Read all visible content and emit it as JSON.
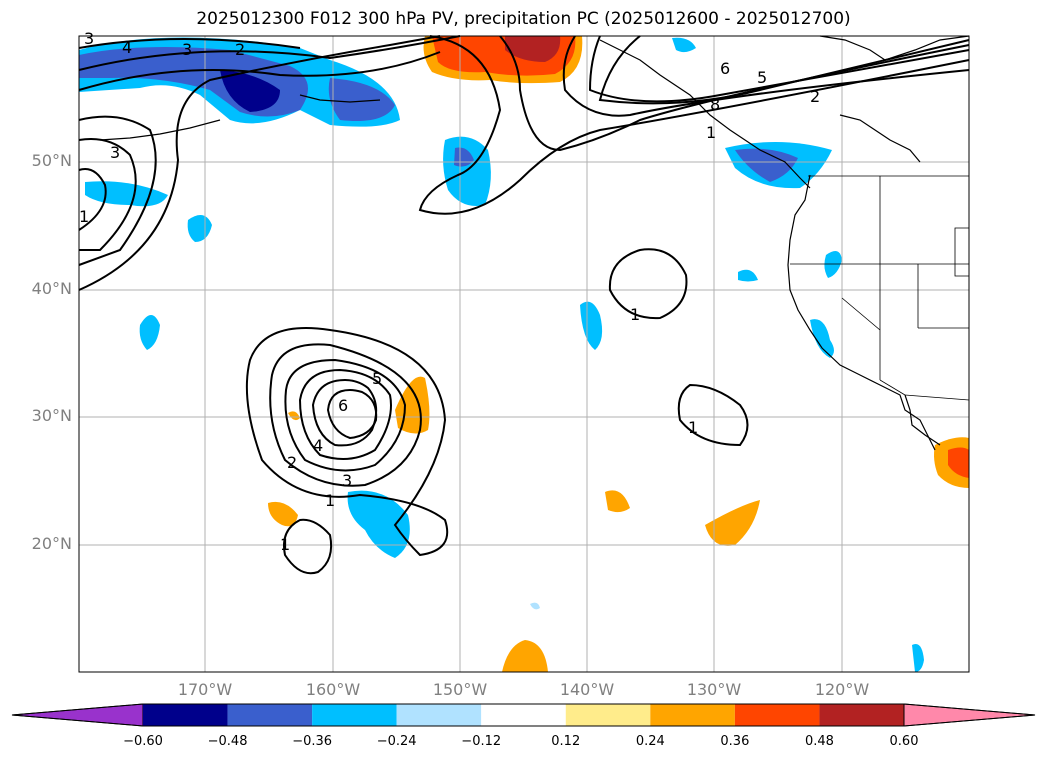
{
  "title": "2025012300 F012 300 hPa PV, precipitation PC (2025012600 - 2025012700)",
  "lat_labels": [
    "50°N",
    "40°N",
    "30°N",
    "20°N"
  ],
  "lon_labels": [
    "170°W",
    "160°W",
    "150°W",
    "140°W",
    "130°W",
    "120°W"
  ],
  "colorbar": {
    "ticks": [
      "−0.60",
      "−0.48",
      "−0.36",
      "−0.24",
      "−0.12",
      "0.12",
      "0.24",
      "0.36",
      "0.48",
      "0.60"
    ],
    "colors": [
      "#9932cc",
      "#00008b",
      "#3a5fcd",
      "#00bfff",
      "#b0e2ff",
      "#ffffff",
      "#ffec8b",
      "#ffa500",
      "#ff4500",
      "#b22222",
      "#ff88aa"
    ]
  },
  "contour_labels": [
    "4",
    "3",
    "2",
    "6",
    "5",
    "2",
    "8",
    "1",
    "3",
    "3",
    "6",
    "5",
    "4",
    "2",
    "3",
    "1",
    "1",
    "1",
    "1",
    "1"
  ],
  "colors": {
    "land_line": "#000000",
    "grid": "#b0b0b0",
    "contour": "#000000"
  }
}
